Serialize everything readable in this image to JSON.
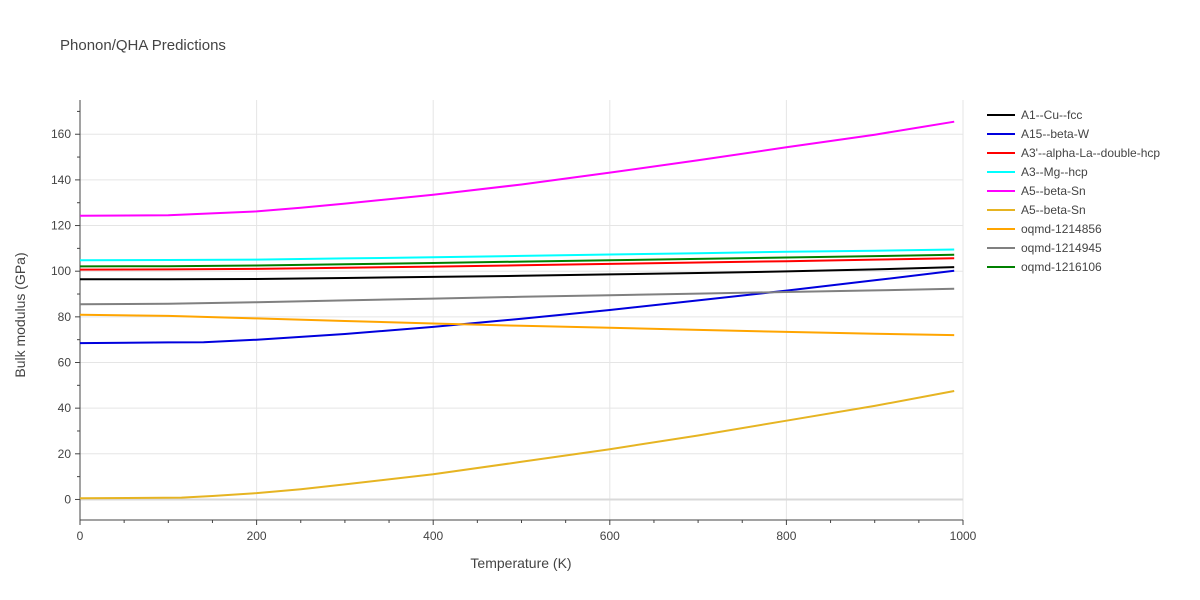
{
  "chart_data": {
    "type": "line",
    "title": "Phonon/QHA Predictions",
    "xlabel": "Temperature (K)",
    "ylabel": "Bulk modulus (GPa)",
    "xlim": [
      0,
      1000
    ],
    "ylim": [
      -9,
      175
    ],
    "xticks": [
      0,
      200,
      400,
      600,
      800,
      1000
    ],
    "yticks": [
      0,
      20,
      40,
      60,
      80,
      100,
      120,
      140,
      160
    ],
    "grid": true,
    "legend_position": "top-right",
    "series": [
      {
        "name": "A1--Cu--fcc",
        "color": "#000000",
        "x": [
          0,
          100,
          200,
          300,
          400,
          500,
          600,
          700,
          800,
          900,
          990
        ],
        "y": [
          96.5,
          96.5,
          96.6,
          97.0,
          97.5,
          98.0,
          98.6,
          99.2,
          99.9,
          100.8,
          101.8
        ]
      },
      {
        "name": "A15--beta-W",
        "color": "#0000dd",
        "x": [
          0,
          100,
          140,
          200,
          300,
          400,
          500,
          600,
          700,
          800,
          900,
          990
        ],
        "y": [
          68.5,
          68.8,
          68.9,
          70.0,
          72.5,
          75.6,
          79.2,
          83.0,
          87.2,
          91.5,
          96.0,
          100.2
        ]
      },
      {
        "name": "A3'--alpha-La--double-hcp",
        "color": "#ff0000",
        "x": [
          0,
          100,
          200,
          300,
          400,
          500,
          600,
          700,
          800,
          900,
          990
        ],
        "y": [
          100.7,
          100.8,
          101.0,
          101.5,
          102.0,
          102.6,
          103.2,
          103.8,
          104.4,
          105.1,
          105.7
        ]
      },
      {
        "name": "A3--Mg--hcp",
        "color": "#00ffff",
        "x": [
          0,
          100,
          200,
          300,
          400,
          500,
          600,
          700,
          800,
          900,
          990
        ],
        "y": [
          104.8,
          104.9,
          105.1,
          105.6,
          106.1,
          106.7,
          107.3,
          107.9,
          108.5,
          109.0,
          109.5
        ]
      },
      {
        "name": "A5--beta-Sn",
        "color": "#ff00ff",
        "x": [
          0,
          100,
          200,
          250,
          300,
          400,
          500,
          600,
          700,
          800,
          900,
          990
        ],
        "y": [
          124.3,
          124.5,
          126.2,
          127.8,
          129.6,
          133.5,
          138.0,
          143.2,
          148.6,
          154.3,
          159.8,
          165.5
        ]
      },
      {
        "name": "A5--beta-Sn",
        "color": "#e6b422",
        "x": [
          0,
          115,
          150,
          200,
          250,
          300,
          400,
          500,
          600,
          700,
          800,
          900,
          990
        ],
        "y": [
          0.5,
          0.8,
          1.5,
          2.8,
          4.5,
          6.6,
          11.0,
          16.5,
          22.0,
          28.0,
          34.5,
          41.0,
          47.5
        ]
      },
      {
        "name": "oqmd-1214856",
        "color": "#ffa500",
        "x": [
          0,
          100,
          200,
          300,
          400,
          500,
          600,
          700,
          800,
          900,
          990
        ],
        "y": [
          80.9,
          80.4,
          79.3,
          78.2,
          77.1,
          76.1,
          75.2,
          74.3,
          73.4,
          72.6,
          72.0
        ]
      },
      {
        "name": "oqmd-1214945",
        "color": "#808080",
        "x": [
          0,
          100,
          200,
          300,
          400,
          500,
          600,
          700,
          800,
          900,
          990
        ],
        "y": [
          85.5,
          85.7,
          86.4,
          87.2,
          88.0,
          88.8,
          89.5,
          90.2,
          90.9,
          91.6,
          92.3
        ]
      },
      {
        "name": "oqmd-1216106",
        "color": "#008000",
        "x": [
          0,
          100,
          200,
          300,
          400,
          500,
          600,
          700,
          800,
          900,
          990
        ],
        "y": [
          102.1,
          102.2,
          102.5,
          103.0,
          103.6,
          104.2,
          104.8,
          105.4,
          106.0,
          106.6,
          107.2
        ]
      }
    ]
  }
}
